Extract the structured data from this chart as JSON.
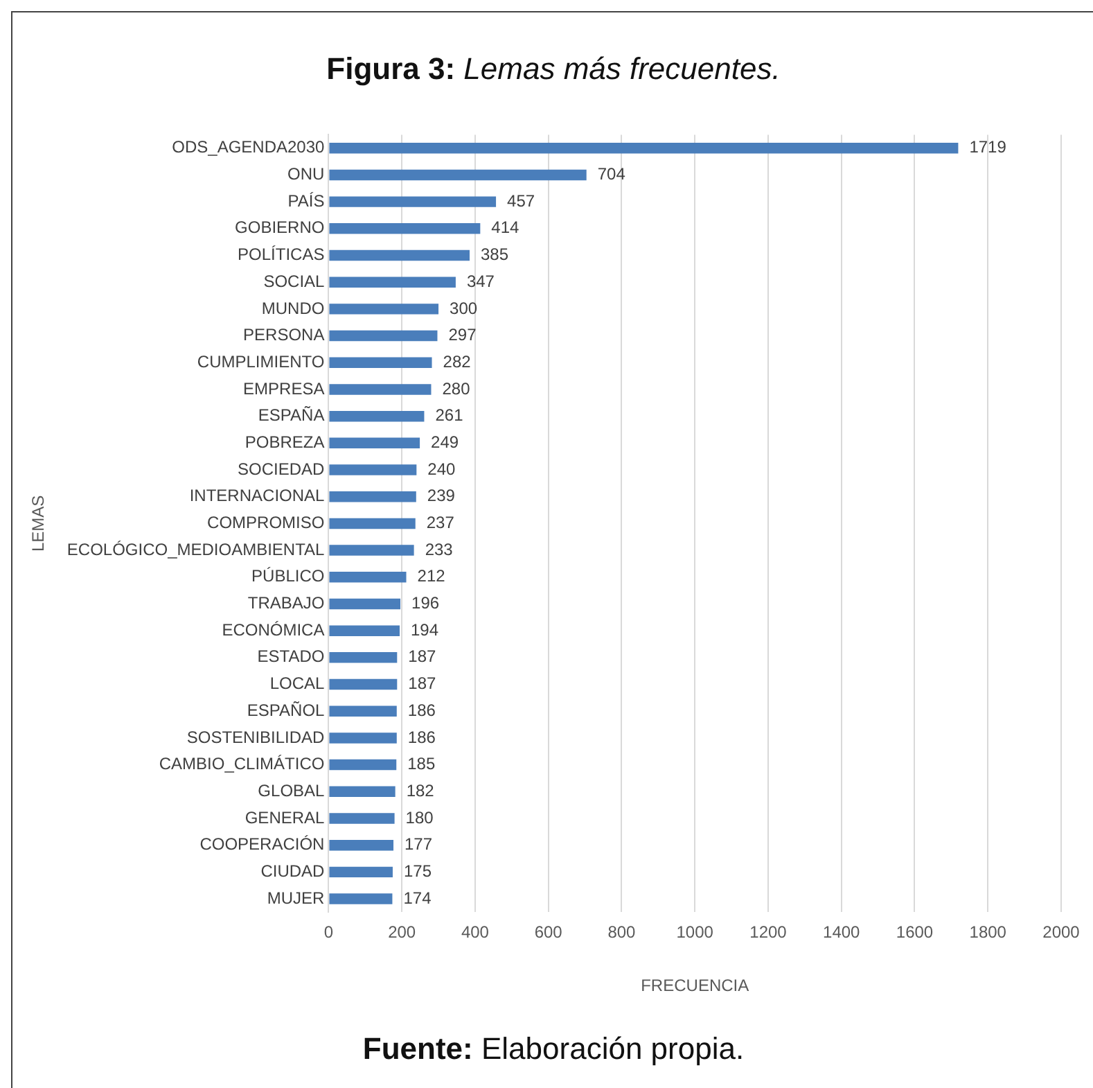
{
  "chart_data": {
    "type": "bar",
    "orientation": "horizontal",
    "title": "Figura 3: Lemas más frecuentes.",
    "xlabel": "FRECUENCIA",
    "ylabel": "LEMAS",
    "annotations": [
      "Fuente: Elaboración propia."
    ],
    "categories": [
      "ODS_AGENDA2030",
      "ONU",
      "PAÍS",
      "GOBIERNO",
      "POLÍTICAS",
      "SOCIAL",
      "MUNDO",
      "PERSONA",
      "CUMPLIMIENTO",
      "EMPRESA",
      "ESPAÑA",
      "POBREZA",
      "SOCIEDAD",
      "INTERNACIONAL",
      "COMPROMISO",
      "ECOLÓGICO_MEDIOAMBIENTAL",
      "PÚBLICO",
      "TRABAJO",
      "ECONÓMICA",
      "ESTADO",
      "LOCAL",
      "ESPAÑOL",
      "SOSTENIBILIDAD",
      "CAMBIO_CLIMÁTICO",
      "GLOBAL",
      "GENERAL",
      "COOPERACIÓN",
      "CIUDAD",
      "MUJER"
    ],
    "values": [
      1719,
      704,
      457,
      414,
      385,
      347,
      300,
      297,
      282,
      280,
      261,
      249,
      240,
      239,
      237,
      233,
      212,
      196,
      194,
      187,
      187,
      186,
      186,
      185,
      182,
      180,
      177,
      175,
      174
    ],
    "color": "#4a7ebb",
    "data_labels": true,
    "grid": "x",
    "legend": false,
    "xlim": [
      0,
      2000
    ],
    "xticks": [
      0,
      200,
      400,
      600,
      800,
      1000,
      1200,
      1400,
      1600,
      1800,
      2000
    ]
  }
}
